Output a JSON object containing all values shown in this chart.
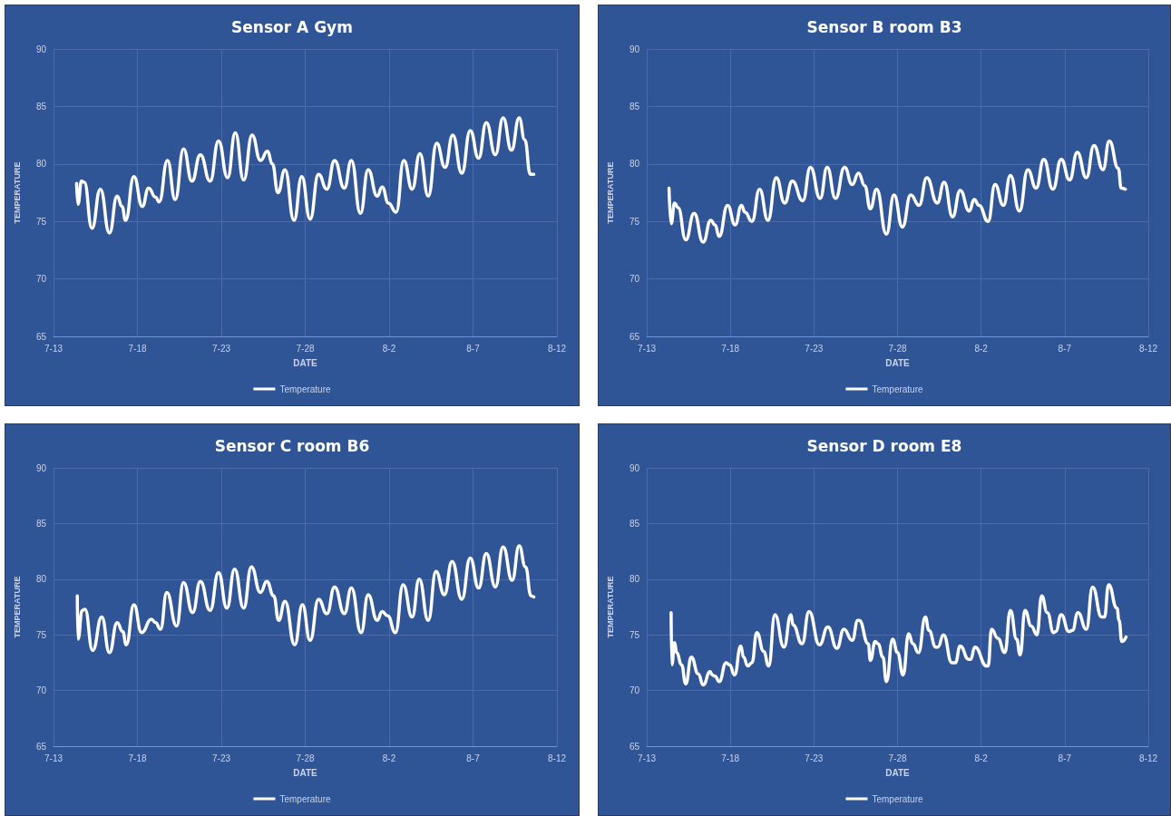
{
  "chart_data": [
    {
      "type": "line",
      "title": "Sensor A Gym",
      "xlabel": "DATE",
      "ylabel": "TEMPERATURE",
      "grid": true,
      "legend": "bottom",
      "xlim": [
        "--07-13",
        "--08-12"
      ],
      "xticks": [
        {
          "value": "--07-13",
          "label": "7-13"
        },
        {
          "value": "--07-18",
          "label": "7-18"
        },
        {
          "value": "--07-23",
          "label": "7-23"
        },
        {
          "value": "--07-28",
          "label": "7-28"
        },
        {
          "value": "--08-02",
          "label": "8-2"
        },
        {
          "value": "--08-07",
          "label": "8-7"
        },
        {
          "value": "--08-12",
          "label": "8-12"
        }
      ],
      "ylim": [
        65,
        90
      ],
      "yticks": [
        65,
        70,
        75,
        80,
        85,
        90
      ],
      "series": [
        {
          "name": "Temperature",
          "color": "#ffffff",
          "x": [
            "--07-14T09:00",
            "--07-14T11:00",
            "--07-14T16:00",
            "--07-14T20:00",
            "--07-15T07:00",
            "--07-15T19:00",
            "--07-16T08:00",
            "--07-16T19:00",
            "--07-17T02:00",
            "--07-17T07:00",
            "--07-17T19:00",
            "--07-18T07:00",
            "--07-18T16:00",
            "--07-19T02:00",
            "--07-19T07:00",
            "--07-19T19:00",
            "--07-20T06:00",
            "--07-20T18:00",
            "--07-21T06:00",
            "--07-21T18:00",
            "--07-22T08:00",
            "--07-22T20:00",
            "--07-23T09:00",
            "--07-23T20:00",
            "--07-24T08:00",
            "--07-24T20:00",
            "--07-25T08:00",
            "--07-25T18:00",
            "--07-26T01:00",
            "--07-26T09:00",
            "--07-26T19:00",
            "--07-27T08:00",
            "--07-27T19:00",
            "--07-28T07:00",
            "--07-28T19:00",
            "--07-29T07:00",
            "--07-29T18:00",
            "--07-30T08:00",
            "--07-30T18:00",
            "--07-31T07:00",
            "--07-31T18:00",
            "--08-01T07:00",
            "--08-01T14:00",
            "--08-01T23:00",
            "--08-02T10:00",
            "--08-02T21:00",
            "--08-03T09:00",
            "--08-03T20:00",
            "--08-04T08:00",
            "--08-04T20:00",
            "--08-05T08:00",
            "--08-05T19:00",
            "--08-06T08:00",
            "--08-06T20:00",
            "--08-07T08:00",
            "--08-07T19:00",
            "--08-08T08:00",
            "--08-08T19:00",
            "--08-09T07:00",
            "--08-09T18:00",
            "--08-10T02:00",
            "--08-10T10:00",
            "--08-10T15:00"
          ],
          "values": [
            78.3,
            76.5,
            78.5,
            78.4,
            74.4,
            77.8,
            74.0,
            77.2,
            76.3,
            75.1,
            78.9,
            76.3,
            77.9,
            77.1,
            76.7,
            80.3,
            76.9,
            81.3,
            78.5,
            80.8,
            78.5,
            82.0,
            78.8,
            82.7,
            78.6,
            82.5,
            80.3,
            81.1,
            80.0,
            77.5,
            79.5,
            75.1,
            78.9,
            75.2,
            79.1,
            77.8,
            80.3,
            77.9,
            80.3,
            75.7,
            79.5,
            77.2,
            78.0,
            76.6,
            75.8,
            80.3,
            77.8,
            80.9,
            77.2,
            81.8,
            79.7,
            82.5,
            79.2,
            82.9,
            80.5,
            83.6,
            80.8,
            84.0,
            81.2,
            84.0,
            82.1,
            79.1,
            79.1
          ]
        }
      ]
    },
    {
      "type": "line",
      "title": "Sensor B room B3",
      "xlabel": "DATE",
      "ylabel": "TEMPERATURE",
      "grid": true,
      "legend": "bottom",
      "xlim": [
        "--07-13",
        "--08-12"
      ],
      "xticks": [
        {
          "value": "--07-13",
          "label": "7-13"
        },
        {
          "value": "--07-18",
          "label": "7-18"
        },
        {
          "value": "--07-23",
          "label": "7-23"
        },
        {
          "value": "--07-28",
          "label": "7-28"
        },
        {
          "value": "--08-02",
          "label": "8-2"
        },
        {
          "value": "--08-07",
          "label": "8-7"
        },
        {
          "value": "--08-12",
          "label": "8-12"
        }
      ],
      "ylim": [
        65,
        90
      ],
      "yticks": [
        65,
        70,
        75,
        80,
        85,
        90
      ],
      "series": [
        {
          "name": "Temperature",
          "color": "#ffffff",
          "x": [
            "--07-14T08:00",
            "--07-14T11:00",
            "--07-14T16:00",
            "--07-14T21:00",
            "--07-15T08:00",
            "--07-15T20:00",
            "--07-16T09:00",
            "--07-16T20:00",
            "--07-17T02:00",
            "--07-17T08:00",
            "--07-17T20:00",
            "--07-18T07:00",
            "--07-18T16:00",
            "--07-18T21:00",
            "--07-19T07:00",
            "--07-19T18:00",
            "--07-20T06:00",
            "--07-20T18:00",
            "--07-21T06:00",
            "--07-21T17:00",
            "--07-22T08:00",
            "--07-22T19:00",
            "--07-23T09:00",
            "--07-23T19:00",
            "--07-24T07:00",
            "--07-24T20:00",
            "--07-25T07:00",
            "--07-25T16:00",
            "--07-26T01:00",
            "--07-26T09:00",
            "--07-26T18:00",
            "--07-27T08:00",
            "--07-27T19:00",
            "--07-28T07:00",
            "--07-28T19:00",
            "--07-29T07:00",
            "--07-29T18:00",
            "--07-30T09:00",
            "--07-30T19:00",
            "--07-31T07:00",
            "--07-31T18:00",
            "--08-01T07:00",
            "--08-01T14:00",
            "--08-01T21:00",
            "--08-02T10:00",
            "--08-02T20:00",
            "--08-03T08:00",
            "--08-03T18:00",
            "--08-04T07:00",
            "--08-04T19:00",
            "--08-05T07:00",
            "--08-05T18:00",
            "--08-06T07:00",
            "--08-06T19:00",
            "--08-07T07:00",
            "--08-07T18:00",
            "--08-08T07:00",
            "--08-08T18:00",
            "--08-09T07:00",
            "--08-09T16:00",
            "--08-10T05:00",
            "--08-10T09:00",
            "--08-10T15:00"
          ],
          "values": [
            77.9,
            74.8,
            76.6,
            76.2,
            73.4,
            75.7,
            73.2,
            75.1,
            74.7,
            73.7,
            76.4,
            74.7,
            76.4,
            75.8,
            75.0,
            77.8,
            75.1,
            78.8,
            76.6,
            78.5,
            76.8,
            79.7,
            77.0,
            79.7,
            77.0,
            79.7,
            78.2,
            79.2,
            78.1,
            76.1,
            77.8,
            73.9,
            77.3,
            74.5,
            77.3,
            76.4,
            78.8,
            76.6,
            78.4,
            75.4,
            77.7,
            75.9,
            76.9,
            76.4,
            75.0,
            78.2,
            76.4,
            79.0,
            75.9,
            79.5,
            77.9,
            80.4,
            77.8,
            80.4,
            78.6,
            81.0,
            78.8,
            81.6,
            79.5,
            82.0,
            79.6,
            77.9,
            77.8
          ]
        }
      ]
    },
    {
      "type": "line",
      "title": "Sensor C room B6",
      "xlabel": "DATE",
      "ylabel": "TEMPERATURE",
      "grid": true,
      "legend": "bottom",
      "xlim": [
        "--07-13",
        "--08-12"
      ],
      "xticks": [
        {
          "value": "--07-13",
          "label": "7-13"
        },
        {
          "value": "--07-18",
          "label": "7-18"
        },
        {
          "value": "--07-23",
          "label": "7-23"
        },
        {
          "value": "--07-28",
          "label": "7-28"
        },
        {
          "value": "--08-02",
          "label": "8-2"
        },
        {
          "value": "--08-07",
          "label": "8-7"
        },
        {
          "value": "--08-12",
          "label": "8-12"
        }
      ],
      "ylim": [
        65,
        90
      ],
      "yticks": [
        65,
        70,
        75,
        80,
        85,
        90
      ],
      "series": [
        {
          "name": "Temperature",
          "color": "#ffffff",
          "x": [
            "--07-14T10:00",
            "--07-14T11:00",
            "--07-14T17:00",
            "--07-14T21:00",
            "--07-15T08:00",
            "--07-15T21:00",
            "--07-16T08:00",
            "--07-16T19:00",
            "--07-17T03:00",
            "--07-17T08:00",
            "--07-17T19:00",
            "--07-18T06:00",
            "--07-18T20:00",
            "--07-19T02:00",
            "--07-19T09:00",
            "--07-19T18:00",
            "--07-20T08:00",
            "--07-20T18:00",
            "--07-21T07:00",
            "--07-21T18:00",
            "--07-22T08:00",
            "--07-22T20:00",
            "--07-23T08:00",
            "--07-23T19:00",
            "--07-24T08:00",
            "--07-24T19:00",
            "--07-25T08:00",
            "--07-25T17:00",
            "--07-26T03:00",
            "--07-26T10:00",
            "--07-26T19:00",
            "--07-27T09:00",
            "--07-27T20:00",
            "--07-28T07:00",
            "--07-28T19:00",
            "--07-29T07:00",
            "--07-29T18:00",
            "--07-30T08:00",
            "--07-30T18:00",
            "--07-31T08:00",
            "--07-31T18:00",
            "--08-01T07:00",
            "--08-01T14:00",
            "--08-01T22:00",
            "--08-02T09:00",
            "--08-02T20:00",
            "--08-03T09:00",
            "--08-03T19:00",
            "--08-04T08:00",
            "--08-04T19:00",
            "--08-05T07:00",
            "--08-05T18:00",
            "--08-06T08:00",
            "--08-06T20:00",
            "--08-07T08:00",
            "--08-07T19:00",
            "--08-08T08:00",
            "--08-08T19:00",
            "--08-09T08:00",
            "--08-09T18:00",
            "--08-10T03:00",
            "--08-10T11:00",
            "--08-10T15:00"
          ],
          "values": [
            78.5,
            74.6,
            77.2,
            77.3,
            73.6,
            76.6,
            73.4,
            76.1,
            75.3,
            74.1,
            77.7,
            75.2,
            76.4,
            76.1,
            75.5,
            78.8,
            75.8,
            79.7,
            77.0,
            79.8,
            77.2,
            80.6,
            77.4,
            80.9,
            77.4,
            81.1,
            78.8,
            79.8,
            78.5,
            76.3,
            78.0,
            74.1,
            77.7,
            74.5,
            78.2,
            76.9,
            79.3,
            76.9,
            79.2,
            75.2,
            78.6,
            76.3,
            77.1,
            76.7,
            75.2,
            79.5,
            76.6,
            80.0,
            76.3,
            80.7,
            78.6,
            81.6,
            78.2,
            81.9,
            79.2,
            82.3,
            79.3,
            82.9,
            79.9,
            83.0,
            81.1,
            78.5,
            78.4
          ]
        }
      ]
    },
    {
      "type": "line",
      "title": "Sensor D room E8",
      "xlabel": "DATE",
      "ylabel": "TEMPERATURE",
      "grid": true,
      "legend": "bottom",
      "xlim": [
        "--07-13",
        "--08-12"
      ],
      "xticks": [
        {
          "value": "--07-13",
          "label": "7-13"
        },
        {
          "value": "--07-18",
          "label": "7-18"
        },
        {
          "value": "--07-23",
          "label": "7-23"
        },
        {
          "value": "--07-28",
          "label": "7-28"
        },
        {
          "value": "--08-02",
          "label": "8-2"
        },
        {
          "value": "--08-07",
          "label": "8-7"
        },
        {
          "value": "--08-12",
          "label": "8-12"
        }
      ],
      "ylim": [
        65,
        90
      ],
      "yticks": [
        65,
        70,
        75,
        80,
        85,
        90
      ],
      "series": [
        {
          "name": "Temperature",
          "color": "#ffffff",
          "x": [
            "--07-14T11:00",
            "--07-14T12:00",
            "--07-14T16:00",
            "--07-14T19:00",
            "--07-15T02:00",
            "--07-15T08:00",
            "--07-15T16:00",
            "--07-16T02:00",
            "--07-16T09:00",
            "--07-16T19:00",
            "--07-16T22:00",
            "--07-17T02:00",
            "--07-17T08:00",
            "--07-17T18:00",
            "--07-17T23:00",
            "--07-18T06:00",
            "--07-18T15:00",
            "--07-18T19:00",
            "--07-19T01:00",
            "--07-19T07:00",
            "--07-19T14:00",
            "--07-20T00:00",
            "--07-20T07:00",
            "--07-20T16:00",
            "--07-21T05:00",
            "--07-21T15:00",
            "--07-21T18:00",
            "--07-22T07:00",
            "--07-22T17:00",
            "--07-23T08:00",
            "--07-23T20:00",
            "--07-24T09:00",
            "--07-24T19:00",
            "--07-25T07:00",
            "--07-25T15:00",
            "--07-25T17:00",
            "--07-26T06:00",
            "--07-26T09:00",
            "--07-26T16:00",
            "--07-26T20:00",
            "--07-27T03:00",
            "--07-27T08:00",
            "--07-27T17:00",
            "--07-28T00:00",
            "--07-28T08:00",
            "--07-28T16:00",
            "--07-28T22:00",
            "--07-29T06:00",
            "--07-29T16:00",
            "--07-29T21:00",
            "--07-30T07:00",
            "--07-30T10:00",
            "--07-30T18:00",
            "--07-31T06:00",
            "--07-31T11:00",
            "--07-31T18:00",
            "--08-01T06:00",
            "--08-01T09:00",
            "--08-01T15:00",
            "--08-02T08:00",
            "--08-02T10:00",
            "--08-02T15:00",
            "--08-03T00:00",
            "--08-03T10:00",
            "--08-03T18:00",
            "--08-04T03:00",
            "--08-04T08:00",
            "--08-04T15:00",
            "--08-05T00:00",
            "--08-05T08:00",
            "--08-05T15:00",
            "--08-05T23:00",
            "--08-06T08:00",
            "--08-06T11:00",
            "--08-06T19:00",
            "--08-07T06:00",
            "--08-07T11:00",
            "--08-07T19:00",
            "--08-08T07:00",
            "--08-08T16:00",
            "--08-09T05:00",
            "--08-09T09:00",
            "--08-09T15:00",
            "--08-10T03:00",
            "--08-10T06:00",
            "--08-10T10:00",
            "--08-10T16:00"
          ],
          "values": [
            77.0,
            72.3,
            74.3,
            73.4,
            72.3,
            70.6,
            73.0,
            71.5,
            70.5,
            71.7,
            71.4,
            71.3,
            70.8,
            72.5,
            72.3,
            71.4,
            74.0,
            73.0,
            72.2,
            72.5,
            75.2,
            73.5,
            72.2,
            76.8,
            73.9,
            76.8,
            75.9,
            74.2,
            77.1,
            74.1,
            75.7,
            73.8,
            75.5,
            74.5,
            76.3,
            76.3,
            74.2,
            72.7,
            74.4,
            74.2,
            73.0,
            70.8,
            74.6,
            73.4,
            71.4,
            75.1,
            74.2,
            73.4,
            76.6,
            75.4,
            73.9,
            73.9,
            75.0,
            72.5,
            72.5,
            74.0,
            72.8,
            72.8,
            73.9,
            72.2,
            72.2,
            75.5,
            74.7,
            73.4,
            77.2,
            74.6,
            73.2,
            77.2,
            75.8,
            75.0,
            78.5,
            77.0,
            75.2,
            75.3,
            76.8,
            75.3,
            75.4,
            77.0,
            75.5,
            79.3,
            76.6,
            76.6,
            79.5,
            77.4,
            76.3,
            74.4,
            74.8
          ]
        }
      ]
    }
  ]
}
